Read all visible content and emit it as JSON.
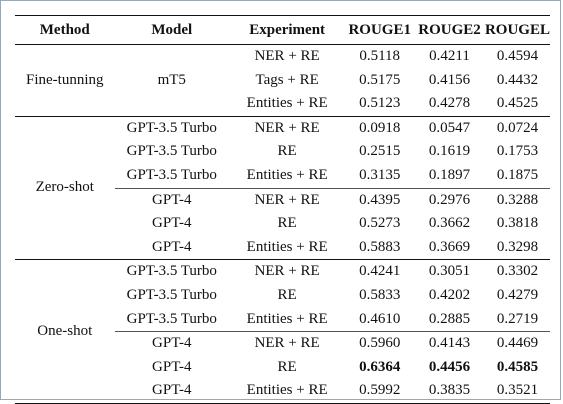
{
  "headers": [
    "Method",
    "Model",
    "Experiment",
    "ROUGE1",
    "ROUGE2",
    "ROUGEL"
  ],
  "groups": [
    {
      "method": "Fine-tunning",
      "rows": [
        {
          "model": "mT5",
          "experiment": "NER + RE",
          "rouge1": "0.5118",
          "rouge2": "0.4211",
          "rougel": "0.4594"
        },
        {
          "model": "",
          "experiment": "Tags + RE",
          "rouge1": "0.5175",
          "rouge2": "0.4156",
          "rougel": "0.4432"
        },
        {
          "model": "",
          "experiment": "Entities + RE",
          "rouge1": "0.5123",
          "rouge2": "0.4278",
          "rougel": "0.4525"
        }
      ]
    },
    {
      "method": "Zero-shot",
      "rows": [
        {
          "model": "GPT-3.5 Turbo",
          "experiment": "NER + RE",
          "rouge1": "0.0918",
          "rouge2": "0.0547",
          "rougel": "0.0724"
        },
        {
          "model": "GPT-3.5 Turbo",
          "experiment": "RE",
          "rouge1": "0.2515",
          "rouge2": "0.1619",
          "rougel": "0.1753"
        },
        {
          "model": "GPT-3.5 Turbo",
          "experiment": "Entities + RE",
          "rouge1": "0.3135",
          "rouge2": "0.1897",
          "rougel": "0.1875"
        },
        {
          "model": "GPT-4",
          "experiment": "NER + RE",
          "rouge1": "0.4395",
          "rouge2": "0.2976",
          "rougel": "0.3288"
        },
        {
          "model": "GPT-4",
          "experiment": "RE",
          "rouge1": "0.5273",
          "rouge2": "0.3662",
          "rougel": "0.3818"
        },
        {
          "model": "GPT-4",
          "experiment": "Entities + RE",
          "rouge1": "0.5883",
          "rouge2": "0.3669",
          "rougel": "0.3298"
        }
      ]
    },
    {
      "method": "One-shot",
      "rows": [
        {
          "model": "GPT-3.5 Turbo",
          "experiment": "NER + RE",
          "rouge1": "0.4241",
          "rouge2": "0.3051",
          "rougel": "0.3302"
        },
        {
          "model": "GPT-3.5 Turbo",
          "experiment": "RE",
          "rouge1": "0.5833",
          "rouge2": "0.4202",
          "rougel": "0.4279"
        },
        {
          "model": "GPT-3.5 Turbo",
          "experiment": "Entities + RE",
          "rouge1": "0.4610",
          "rouge2": "0.2885",
          "rougel": "0.2719"
        },
        {
          "model": "GPT-4",
          "experiment": "NER + RE",
          "rouge1": "0.5960",
          "rouge2": "0.4143",
          "rougel": "0.4469"
        },
        {
          "model": "GPT-4",
          "experiment": "RE",
          "rouge1": "0.6364",
          "rouge2": "0.4456",
          "rougel": "0.4585",
          "bold": true
        },
        {
          "model": "GPT-4",
          "experiment": "Entities + RE",
          "rouge1": "0.5992",
          "rouge2": "0.3835",
          "rougel": "0.3521"
        }
      ]
    }
  ]
}
